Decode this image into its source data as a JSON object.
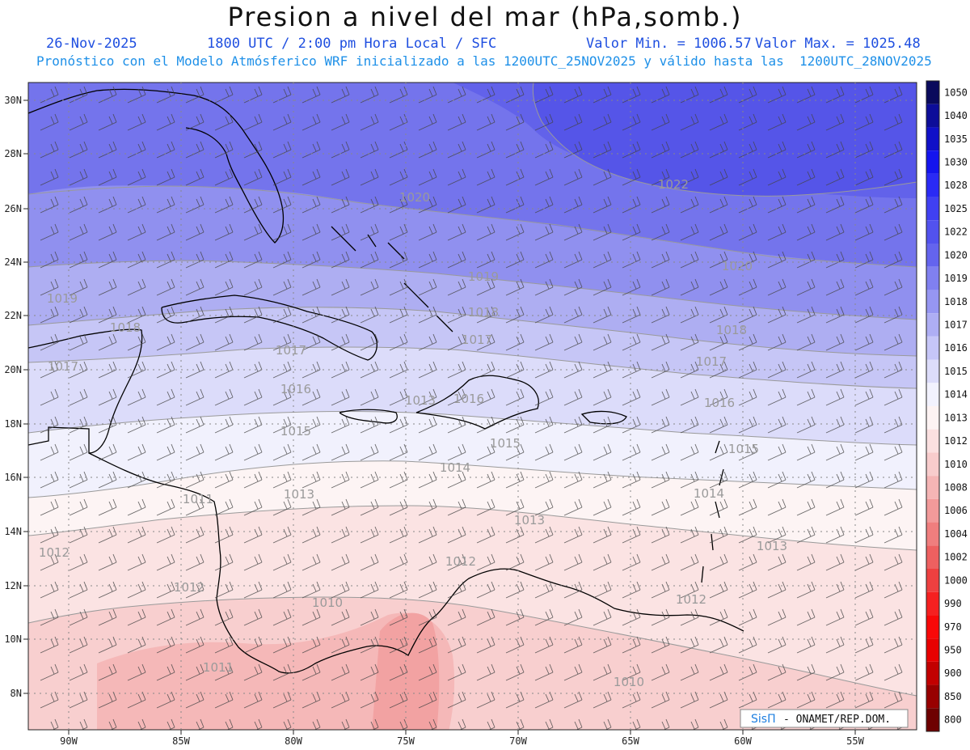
{
  "header": {
    "title": "Presion a nivel del mar (hPa,somb.)",
    "date": "26-Nov-2025",
    "time": "1800 UTC / 2:00 pm Hora Local / SFC",
    "valmin": "Valor Min. = 1006.57",
    "valmax": "Valor Max. = 1025.48",
    "model_line": "Pronóstico con el Modelo Atmósferico WRF inicializado a las 1200UTC_25NOV2025 y válido hasta las  1200UTC_28NOV2025"
  },
  "axes": {
    "lon_labels": [
      "90W",
      "85W",
      "80W",
      "75W",
      "70W",
      "65W",
      "60W",
      "55W"
    ],
    "lat_labels": [
      "30N",
      "28N",
      "26N",
      "24N",
      "22N",
      "20N",
      "18N",
      "16N",
      "14N",
      "12N",
      "10N",
      "8N"
    ]
  },
  "contour_labels": [
    "1022",
    "1020",
    "1020",
    "1019",
    "1019",
    "1018",
    "1018",
    "1018",
    "1017",
    "1017",
    "1017",
    "1017",
    "1016",
    "1016",
    "1015",
    "1015",
    "1015",
    "1014",
    "1014",
    "1013",
    "1013",
    "1013",
    "1012",
    "1012",
    "1012",
    "1012",
    "1011",
    "1011",
    "1010",
    "1010",
    "1013",
    "1016"
  ],
  "colorbar": {
    "levels": [
      "1050",
      "1040",
      "1035",
      "1030",
      "1028",
      "1025",
      "1022",
      "1020",
      "1019",
      "1018",
      "1017",
      "1016",
      "1015",
      "1014",
      "1013",
      "1012",
      "1010",
      "1008",
      "1006",
      "1004",
      "1002",
      "1000",
      "990",
      "970",
      "950",
      "900",
      "850",
      "800"
    ],
    "colors": [
      "#0a0a5c",
      "#0d0d99",
      "#1010c8",
      "#1414ee",
      "#2a2af5",
      "#4040f2",
      "#5252ee",
      "#6464ee",
      "#8080f0",
      "#9696f2",
      "#aeaef4",
      "#c6c6f8",
      "#dcdcfa",
      "#f2f2fe",
      "#fdf3f3",
      "#fbe0e0",
      "#f8cccc",
      "#f5b5b5",
      "#f29a9a",
      "#f07e7e",
      "#ee6060",
      "#ee4040",
      "#f52020",
      "#f80808",
      "#e80000",
      "#c20000",
      "#980000",
      "#6e0000"
    ]
  },
  "credit": {
    "brand": "SisΠ",
    "org": " - ONAMET/REP.DOM."
  },
  "colors": {
    "title_blue": "#1f4fe0",
    "model_blue": "#1e90e8"
  }
}
